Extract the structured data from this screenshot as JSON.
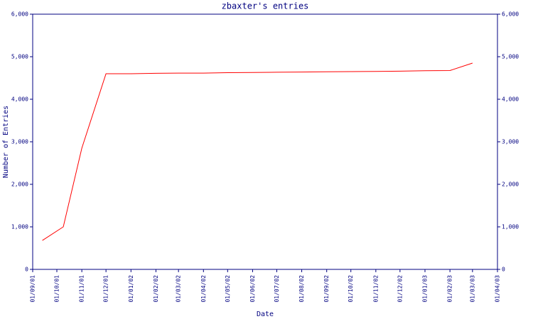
{
  "chart_data": {
    "type": "line",
    "title": "zbaxter's entries",
    "x_label": "Date",
    "y_label": "Number of Entries",
    "x": [
      "13/09/01",
      "09/10/01",
      "01/11/01",
      "01/12/01",
      "01/01/02",
      "01/02/02",
      "01/03/02",
      "01/04/02",
      "01/05/02",
      "01/06/02",
      "01/07/02",
      "01/08/02",
      "01/09/02",
      "01/10/02",
      "01/11/02",
      "01/12/02",
      "01/01/03",
      "01/02/03",
      "01/03/03"
    ],
    "series": [
      {
        "color": "#ff0000",
        "values": [
          680,
          1000,
          2850,
          4600,
          4600,
          4610,
          4615,
          4615,
          4625,
          4630,
          4635,
          4640,
          4645,
          4650,
          4655,
          4660,
          4670,
          4675,
          4850
        ]
      }
    ],
    "xlim": [
      "01/09/01",
      "01/04/03"
    ],
    "xticks": [
      "01/09/01",
      "01/10/01",
      "01/11/01",
      "01/12/01",
      "01/01/02",
      "01/02/02",
      "01/03/02",
      "01/04/02",
      "01/05/02",
      "01/06/02",
      "01/07/02",
      "01/08/02",
      "01/09/02",
      "01/10/02",
      "01/11/02",
      "01/12/02",
      "01/01/03",
      "01/02/03",
      "01/03/03",
      "01/04/03"
    ],
    "ylim": [
      0,
      6000
    ],
    "yticks": [
      0,
      {
        "value": 1000,
        "label": "1,000"
      },
      {
        "value": 2000,
        "label": "2,000"
      },
      {
        "value": 3000,
        "label": "3,000"
      },
      {
        "value": 4000,
        "label": "4,000"
      },
      {
        "value": 5000,
        "label": "5,000"
      },
      {
        "value": 6000,
        "label": "6,000"
      }
    ],
    "y2lim": [
      0,
      6000
    ],
    "y2ticks": [
      0,
      {
        "value": 1000,
        "label": "1,000"
      },
      {
        "value": 2000,
        "label": "2,000"
      },
      {
        "value": 3000,
        "label": "3,000"
      },
      {
        "value": 4000,
        "label": "4,000"
      },
      {
        "value": 5000,
        "label": "5,000"
      },
      {
        "value": 6000,
        "label": "6,000"
      }
    ]
  }
}
